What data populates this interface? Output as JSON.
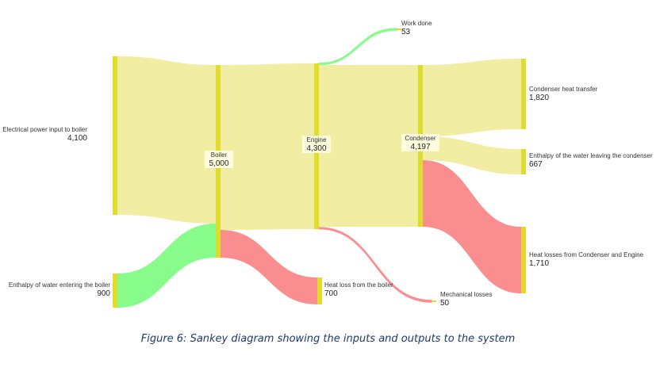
{
  "caption": "Figure 6: Sankey diagram showing the inputs and outputs to the system",
  "colors": {
    "node": "#e0dc2c",
    "flow_main": "#f0ec9e",
    "flow_input": "#88fc8a",
    "flow_loss": "#fa8e8e",
    "label_box": "#fefde6"
  },
  "chart_data": {
    "type": "sankey",
    "nodes": [
      {
        "id": "elec",
        "label": "Electrical power input to boiler",
        "value": "4,100"
      },
      {
        "id": "enth_in",
        "label": "Enthalpy of water entering the boiler",
        "value": "900"
      },
      {
        "id": "boiler",
        "label": "Boiler",
        "value": "5,000"
      },
      {
        "id": "heatloss_boiler",
        "label": "Heat loss from the boiler",
        "value": "700"
      },
      {
        "id": "engine",
        "label": "Engine",
        "value": "4,300"
      },
      {
        "id": "work",
        "label": "Work done",
        "value": "53"
      },
      {
        "id": "mech",
        "label": "Mechanical losses",
        "value": "50"
      },
      {
        "id": "condenser",
        "label": "Condenser",
        "value": "4,197"
      },
      {
        "id": "cond_heat",
        "label": "Condenser heat transfer",
        "value": "1,820"
      },
      {
        "id": "enth_out",
        "label": "Enthalpy of the water leaving the condenser",
        "value": "667"
      },
      {
        "id": "heatloss_ce",
        "label": "Heat losses from Condenser and Engine",
        "value": "1,710"
      }
    ],
    "links": [
      {
        "source": "elec",
        "target": "boiler",
        "value": 4100,
        "kind": "main"
      },
      {
        "source": "enth_in",
        "target": "boiler",
        "value": 900,
        "kind": "input"
      },
      {
        "source": "boiler",
        "target": "engine",
        "value": 4300,
        "kind": "main"
      },
      {
        "source": "boiler",
        "target": "heatloss_boiler",
        "value": 700,
        "kind": "loss"
      },
      {
        "source": "engine",
        "target": "work",
        "value": 53,
        "kind": "input"
      },
      {
        "source": "engine",
        "target": "condenser",
        "value": 4197,
        "kind": "main"
      },
      {
        "source": "engine",
        "target": "mech",
        "value": 50,
        "kind": "loss"
      },
      {
        "source": "condenser",
        "target": "cond_heat",
        "value": 1820,
        "kind": "main"
      },
      {
        "source": "condenser",
        "target": "enth_out",
        "value": 667,
        "kind": "main"
      },
      {
        "source": "condenser",
        "target": "heatloss_ce",
        "value": 1710,
        "kind": "loss"
      }
    ]
  }
}
